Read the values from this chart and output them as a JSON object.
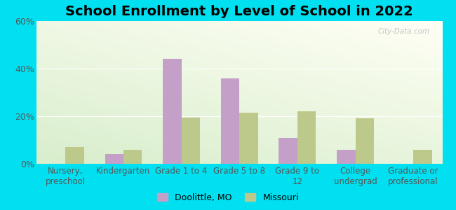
{
  "title": "School Enrollment by Level of School in 2022",
  "categories": [
    "Nursery,\npreschool",
    "Kindergarten",
    "Grade 1 to 4",
    "Grade 5 to 8",
    "Grade 9 to\n12",
    "College\nundergrad",
    "Graduate or\nprofessional"
  ],
  "doolittle_values": [
    0,
    4,
    44,
    36,
    11,
    6,
    0
  ],
  "missouri_values": [
    7,
    6,
    19.5,
    21.5,
    22,
    19,
    6
  ],
  "doolittle_color": "#c4a0c8",
  "missouri_color": "#bdc98a",
  "background_outer": "#00e0f0",
  "gradient_top_left": "#e8f5e8",
  "gradient_top_right": "#f8f8f2",
  "gradient_bottom_left": "#d8eecc",
  "gradient_bottom_right": "#eef8e8",
  "ylim": [
    0,
    60
  ],
  "yticks": [
    0,
    20,
    40,
    60
  ],
  "ytick_labels": [
    "0%",
    "20%",
    "40%",
    "60%"
  ],
  "bar_width": 0.32,
  "legend_labels": [
    "Doolittle, MO",
    "Missouri"
  ],
  "watermark": "City-Data.com",
  "title_fontsize": 14,
  "tick_fontsize": 8.5,
  "ytick_fontsize": 9
}
